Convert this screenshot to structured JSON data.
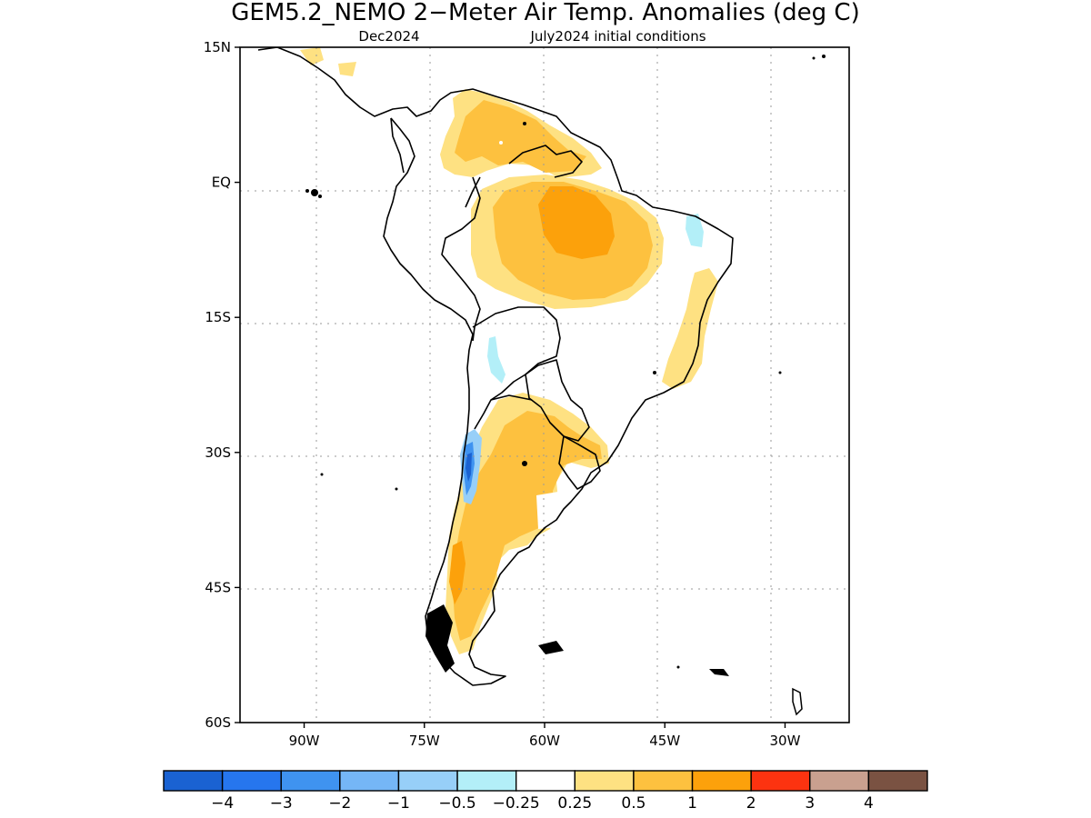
{
  "title": "GEM5.2_NEMO 2−Meter Air Temp. Anomalies (deg C)",
  "subtitle_month": "Dec2024",
  "subtitle_init": "July2024 initial conditions",
  "map": {
    "lon_range": [
      -98,
      -22
    ],
    "lat_range": [
      -60,
      15
    ],
    "lon_ticks": [
      {
        "value": -90,
        "label": "90W"
      },
      {
        "value": -75,
        "label": "75W"
      },
      {
        "value": -60,
        "label": "60W"
      },
      {
        "value": -45,
        "label": "45W"
      },
      {
        "value": -30,
        "label": "30W"
      }
    ],
    "lat_ticks": [
      {
        "value": 15,
        "label": "15N"
      },
      {
        "value": 0,
        "label": "EQ"
      },
      {
        "value": -15,
        "label": "15S"
      },
      {
        "value": -30,
        "label": "30S"
      },
      {
        "value": -45,
        "label": "45S"
      },
      {
        "value": -60,
        "label": "60S"
      }
    ],
    "grid": "dotted"
  },
  "legend": {
    "colors": [
      "#1a62d2",
      "#2676ee",
      "#3f93f0",
      "#75b6f6",
      "#97cff8",
      "#b3eff8",
      "#ffffff",
      "#fee182",
      "#fdc13f",
      "#fca10b",
      "#fc3310",
      "#c9a08f",
      "#7a5242"
    ],
    "labels": [
      "−4",
      "−3",
      "−2",
      "−1",
      "−0.5",
      "−0.25",
      "0.25",
      "0.5",
      "1",
      "2",
      "3",
      "4"
    ]
  }
}
